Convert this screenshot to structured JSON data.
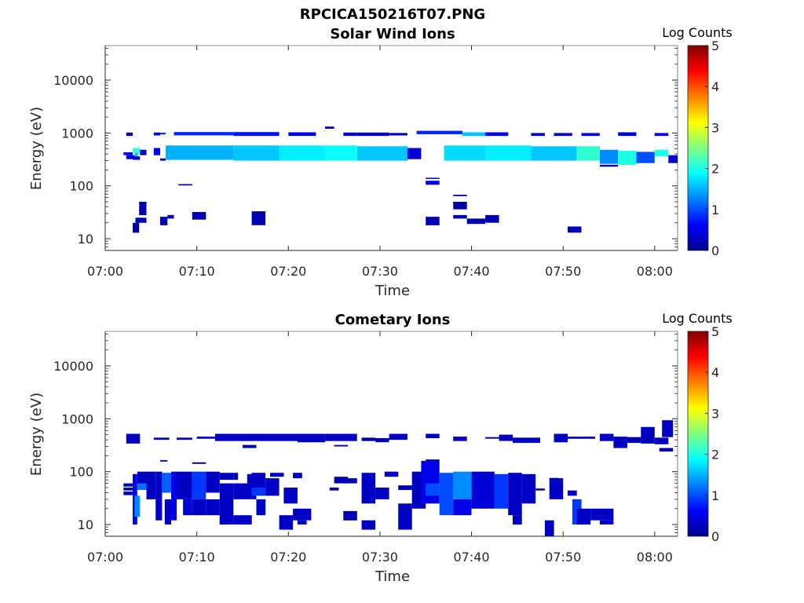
{
  "figure": {
    "title": "RPCICA150216T07.PNG"
  },
  "colors": {
    "axis": "#262626",
    "colormap": [
      "#00008f",
      "#0000ff",
      "#0080ff",
      "#00ffff",
      "#80ff80",
      "#ffff00",
      "#ff8000",
      "#ff0000",
      "#800000"
    ]
  },
  "chart_data": [
    {
      "type": "heatmap",
      "title": "Solar Wind Ions",
      "xlabel": "Time",
      "ylabel": "Energy (eV)",
      "x_ticks": [
        "07:00",
        "07:10",
        "07:20",
        "07:30",
        "07:40",
        "07:50",
        "08:00"
      ],
      "xlim_minutes": [
        0,
        62.5
      ],
      "y_scale": "log",
      "ylim": [
        6,
        45000
      ],
      "y_ticks": [
        10,
        100,
        1000,
        10000
      ],
      "y_tick_labels": [
        "10",
        "100",
        "1000",
        "10000"
      ],
      "colorbar": {
        "label": "Log Counts",
        "ticks": [
          "0",
          "1",
          "2",
          "3",
          "4",
          "5"
        ],
        "range": [
          0,
          5
        ]
      },
      "cells": [
        [
          2.0,
          3.0,
          380,
          430,
          0.6
        ],
        [
          2.3,
          3.3,
          320,
          380,
          0.4
        ],
        [
          2.3,
          3.0,
          880,
          1020,
          0.2
        ],
        [
          3.0,
          3.8,
          420,
          520,
          2.1
        ],
        [
          3.2,
          3.6,
          360,
          420,
          1.6
        ],
        [
          3.0,
          3.8,
          310,
          360,
          0.3
        ],
        [
          3.8,
          4.5,
          380,
          480,
          0.3
        ],
        [
          5.3,
          6.0,
          380,
          520,
          0.5
        ],
        [
          5.3,
          6.0,
          900,
          1020,
          0.4
        ],
        [
          6.0,
          6.6,
          940,
          1010,
          0.8
        ],
        [
          6.0,
          6.6,
          300,
          330,
          0.2
        ],
        [
          6.6,
          14.0,
          310,
          580,
          1.5
        ],
        [
          7.5,
          14.0,
          900,
          1040,
          0.8
        ],
        [
          14.0,
          19.0,
          300,
          580,
          1.6
        ],
        [
          14.0,
          19.0,
          880,
          1040,
          0.7
        ],
        [
          19.0,
          24.0,
          300,
          580,
          1.8
        ],
        [
          20.0,
          23.0,
          880,
          1030,
          0.5
        ],
        [
          24.0,
          25.0,
          1200,
          1320,
          0.3
        ],
        [
          24.0,
          27.5,
          300,
          580,
          1.9
        ],
        [
          26.0,
          27.5,
          880,
          1020,
          0.5
        ],
        [
          27.5,
          33.0,
          300,
          560,
          1.6
        ],
        [
          27.5,
          31.0,
          880,
          1020,
          0.5
        ],
        [
          31.0,
          33.0,
          900,
          1000,
          0.3
        ],
        [
          33.0,
          34.5,
          320,
          520,
          0.4
        ],
        [
          34.0,
          39.0,
          950,
          1100,
          0.8
        ],
        [
          37.0,
          41.5,
          300,
          580,
          1.7
        ],
        [
          39.0,
          41.5,
          880,
          1030,
          1.6
        ],
        [
          41.5,
          46.5,
          300,
          580,
          1.8
        ],
        [
          41.5,
          44.0,
          880,
          1030,
          0.6
        ],
        [
          46.5,
          51.5,
          300,
          560,
          1.6
        ],
        [
          46.5,
          48.0,
          880,
          1000,
          0.4
        ],
        [
          49.0,
          51.0,
          880,
          1000,
          0.4
        ],
        [
          51.5,
          54.0,
          300,
          560,
          2.1
        ],
        [
          52.0,
          54.0,
          880,
          1000,
          0.6
        ],
        [
          54.0,
          56.0,
          260,
          480,
          1.3
        ],
        [
          54.0,
          56.0,
          230,
          250,
          0.2
        ],
        [
          56.0,
          58.0,
          250,
          460,
          2.0
        ],
        [
          56.0,
          58.0,
          880,
          1030,
          0.4
        ],
        [
          58.0,
          60.0,
          270,
          440,
          1.0
        ],
        [
          60.0,
          61.5,
          360,
          480,
          2.0
        ],
        [
          60.0,
          61.5,
          880,
          1000,
          0.6
        ],
        [
          61.5,
          62.5,
          270,
          380,
          0.4
        ],
        [
          8.0,
          9.5,
          102,
          108,
          0.3
        ],
        [
          35.0,
          36.5,
          105,
          125,
          0.5
        ],
        [
          35.0,
          36.5,
          135,
          142,
          0.3
        ],
        [
          38.0,
          39.5,
          64,
          68,
          0.2
        ],
        [
          38.0,
          39.5,
          36,
          50,
          0.2
        ],
        [
          3.0,
          3.7,
          13,
          20,
          0.2
        ],
        [
          3.7,
          4.5,
          28,
          50,
          0.2
        ],
        [
          3.3,
          4.5,
          20,
          25,
          0.2
        ],
        [
          6.0,
          6.8,
          18,
          26,
          0.2
        ],
        [
          6.8,
          7.5,
          24,
          28,
          0.2
        ],
        [
          9.5,
          11.0,
          23,
          32,
          0.2
        ],
        [
          16.0,
          17.5,
          18,
          33,
          0.2
        ],
        [
          35.0,
          36.5,
          18,
          26,
          0.2
        ],
        [
          38.0,
          39.5,
          24,
          28,
          0.2
        ],
        [
          39.5,
          41.5,
          19,
          24,
          0.2
        ],
        [
          41.5,
          43.0,
          20,
          28,
          0.2
        ],
        [
          50.5,
          52.0,
          13,
          17,
          0.2
        ]
      ]
    },
    {
      "type": "heatmap",
      "title": "Cometary Ions",
      "xlabel": "Time",
      "ylabel": "Energy (eV)",
      "x_ticks": [
        "07:00",
        "07:10",
        "07:20",
        "07:30",
        "07:40",
        "07:50",
        "08:00"
      ],
      "xlim_minutes": [
        0,
        62.5
      ],
      "y_scale": "log",
      "ylim": [
        6,
        45000
      ],
      "y_ticks": [
        10,
        100,
        1000,
        10000
      ],
      "y_tick_labels": [
        "10",
        "100",
        "1000",
        "10000"
      ],
      "colorbar": {
        "label": "Log Counts",
        "ticks": [
          "0",
          "1",
          "2",
          "3",
          "4",
          "5"
        ],
        "range": [
          0,
          5
        ]
      },
      "cells": [
        [
          2.3,
          3.8,
          340,
          520,
          0.3
        ],
        [
          5.3,
          7.0,
          400,
          440,
          0.3
        ],
        [
          7.8,
          9.5,
          400,
          440,
          0.3
        ],
        [
          10.0,
          12.0,
          420,
          460,
          0.3
        ],
        [
          12.0,
          16.5,
          380,
          520,
          0.3
        ],
        [
          16.5,
          21.0,
          380,
          520,
          0.3
        ],
        [
          21.0,
          24.0,
          360,
          520,
          0.3
        ],
        [
          24.0,
          27.5,
          380,
          520,
          0.3
        ],
        [
          28.0,
          29.5,
          380,
          440,
          0.2
        ],
        [
          29.5,
          31.0,
          360,
          430,
          0.2
        ],
        [
          31.0,
          33.0,
          400,
          520,
          0.3
        ],
        [
          35.0,
          36.5,
          430,
          520,
          0.3
        ],
        [
          38.0,
          39.5,
          380,
          460,
          0.3
        ],
        [
          41.5,
          43.0,
          420,
          450,
          0.2
        ],
        [
          43.0,
          44.5,
          380,
          500,
          0.3
        ],
        [
          44.5,
          47.5,
          350,
          440,
          0.3
        ],
        [
          49.0,
          50.5,
          360,
          520,
          0.3
        ],
        [
          50.5,
          53.5,
          420,
          460,
          0.2
        ],
        [
          54.0,
          55.5,
          380,
          520,
          0.3
        ],
        [
          55.5,
          57.0,
          280,
          460,
          0.3
        ],
        [
          57.0,
          58.5,
          350,
          450,
          0.2
        ],
        [
          58.5,
          60.0,
          340,
          700,
          0.3
        ],
        [
          60.0,
          61.5,
          330,
          440,
          0.3
        ],
        [
          60.8,
          62.0,
          450,
          940,
          0.3
        ],
        [
          60.5,
          62.0,
          240,
          280,
          0.2
        ],
        [
          15.0,
          16.5,
          280,
          320,
          0.2
        ],
        [
          25.0,
          26.5,
          300,
          320,
          0.2
        ],
        [
          6.0,
          6.8,
          155,
          165,
          0.2
        ],
        [
          9.5,
          11.0,
          140,
          150,
          0.2
        ],
        [
          2.0,
          3.0,
          52,
          60,
          0.3
        ],
        [
          2.0,
          3.0,
          44,
          50,
          0.3
        ],
        [
          2.0,
          3.0,
          36,
          42,
          0.3
        ],
        [
          3.0,
          3.5,
          10,
          90,
          0.5
        ],
        [
          3.2,
          3.8,
          14,
          35,
          1.3
        ],
        [
          3.5,
          4.5,
          45,
          75,
          1.2
        ],
        [
          3.5,
          5.5,
          60,
          100,
          0.3
        ],
        [
          4.5,
          5.5,
          30,
          65,
          0.3
        ],
        [
          5.5,
          6.2,
          30,
          100,
          0.3
        ],
        [
          5.5,
          6.2,
          12,
          30,
          0.3
        ],
        [
          6.2,
          7.2,
          40,
          95,
          1.1
        ],
        [
          6.5,
          7.2,
          10,
          30,
          0.3
        ],
        [
          7.2,
          7.8,
          12,
          100,
          0.5
        ],
        [
          7.8,
          9.5,
          30,
          100,
          0.3
        ],
        [
          8.5,
          9.5,
          15,
          30,
          0.4
        ],
        [
          9.5,
          11.0,
          30,
          100,
          0.9
        ],
        [
          9.5,
          11.0,
          15,
          30,
          0.3
        ],
        [
          11.0,
          12.5,
          40,
          100,
          0.3
        ],
        [
          11.0,
          12.5,
          15,
          30,
          0.3
        ],
        [
          12.5,
          14.0,
          10,
          60,
          0.3
        ],
        [
          12.5,
          14.0,
          70,
          95,
          0.3
        ],
        [
          14.0,
          16.5,
          30,
          60,
          0.3
        ],
        [
          14.0,
          14.5,
          70,
          95,
          0.3
        ],
        [
          15.5,
          16.5,
          60,
          90,
          0.3
        ],
        [
          16.0,
          17.5,
          50,
          95,
          0.3
        ],
        [
          16.0,
          17.5,
          35,
          50,
          0.9
        ],
        [
          17.5,
          19.0,
          35,
          75,
          0.3
        ],
        [
          16.5,
          17.5,
          15,
          30,
          0.3
        ],
        [
          18.0,
          19.5,
          80,
          95,
          0.3
        ],
        [
          19.5,
          21.0,
          25,
          50,
          0.3
        ],
        [
          19.0,
          20.5,
          8,
          15,
          0.3
        ],
        [
          20.5,
          21.5,
          75,
          95,
          0.3
        ],
        [
          25.0,
          26.5,
          60,
          80,
          0.2
        ],
        [
          24.5,
          25.5,
          44,
          50,
          0.2
        ],
        [
          26.0,
          27.5,
          12,
          18,
          0.2
        ],
        [
          26.0,
          27.5,
          60,
          75,
          0.2
        ],
        [
          28.0,
          29.5,
          25,
          95,
          0.3
        ],
        [
          28.0,
          29.5,
          8,
          12,
          0.3
        ],
        [
          29.5,
          31.0,
          30,
          50,
          0.3
        ],
        [
          30.5,
          32.0,
          80,
          100,
          0.3
        ],
        [
          32.0,
          33.5,
          45,
          55,
          0.2
        ],
        [
          32.0,
          33.5,
          8,
          25,
          0.3
        ],
        [
          33.5,
          35.0,
          20,
          100,
          0.3
        ],
        [
          34.5,
          36.5,
          25,
          160,
          0.5
        ],
        [
          35.0,
          36.5,
          35,
          60,
          1.0
        ],
        [
          36.5,
          38.0,
          15,
          95,
          1.0
        ],
        [
          38.0,
          40.0,
          30,
          100,
          1.3
        ],
        [
          38.0,
          40.0,
          15,
          30,
          0.5
        ],
        [
          40.0,
          42.5,
          20,
          100,
          0.4
        ],
        [
          42.5,
          44.0,
          20,
          90,
          0.9
        ],
        [
          44.0,
          45.5,
          15,
          95,
          0.3
        ],
        [
          45.5,
          47.0,
          25,
          90,
          0.3
        ],
        [
          47.0,
          48.0,
          44,
          48,
          0.2
        ],
        [
          44.5,
          45.5,
          10,
          15,
          0.3
        ],
        [
          48.5,
          50.0,
          30,
          75,
          0.3
        ],
        [
          48.0,
          49.0,
          6,
          12,
          0.3
        ],
        [
          48.5,
          49.5,
          72,
          76,
          0.2
        ],
        [
          50.5,
          51.5,
          35,
          44,
          0.3
        ],
        [
          51.0,
          52.0,
          10,
          30,
          0.9
        ],
        [
          51.5,
          53.0,
          10,
          20,
          0.3
        ],
        [
          53.0,
          55.5,
          12,
          20,
          0.3
        ],
        [
          54.0,
          55.5,
          10,
          12,
          0.3
        ],
        [
          12.5,
          13.5,
          10,
          15,
          0.3
        ],
        [
          14.0,
          15.0,
          10,
          15,
          0.3
        ],
        [
          15.0,
          16.0,
          10,
          15,
          0.3
        ],
        [
          20.5,
          22.5,
          12,
          20,
          0.3
        ],
        [
          21.0,
          22.0,
          10,
          12,
          0.3
        ],
        [
          35.0,
          36.5,
          160,
          170,
          0.2
        ]
      ]
    }
  ]
}
